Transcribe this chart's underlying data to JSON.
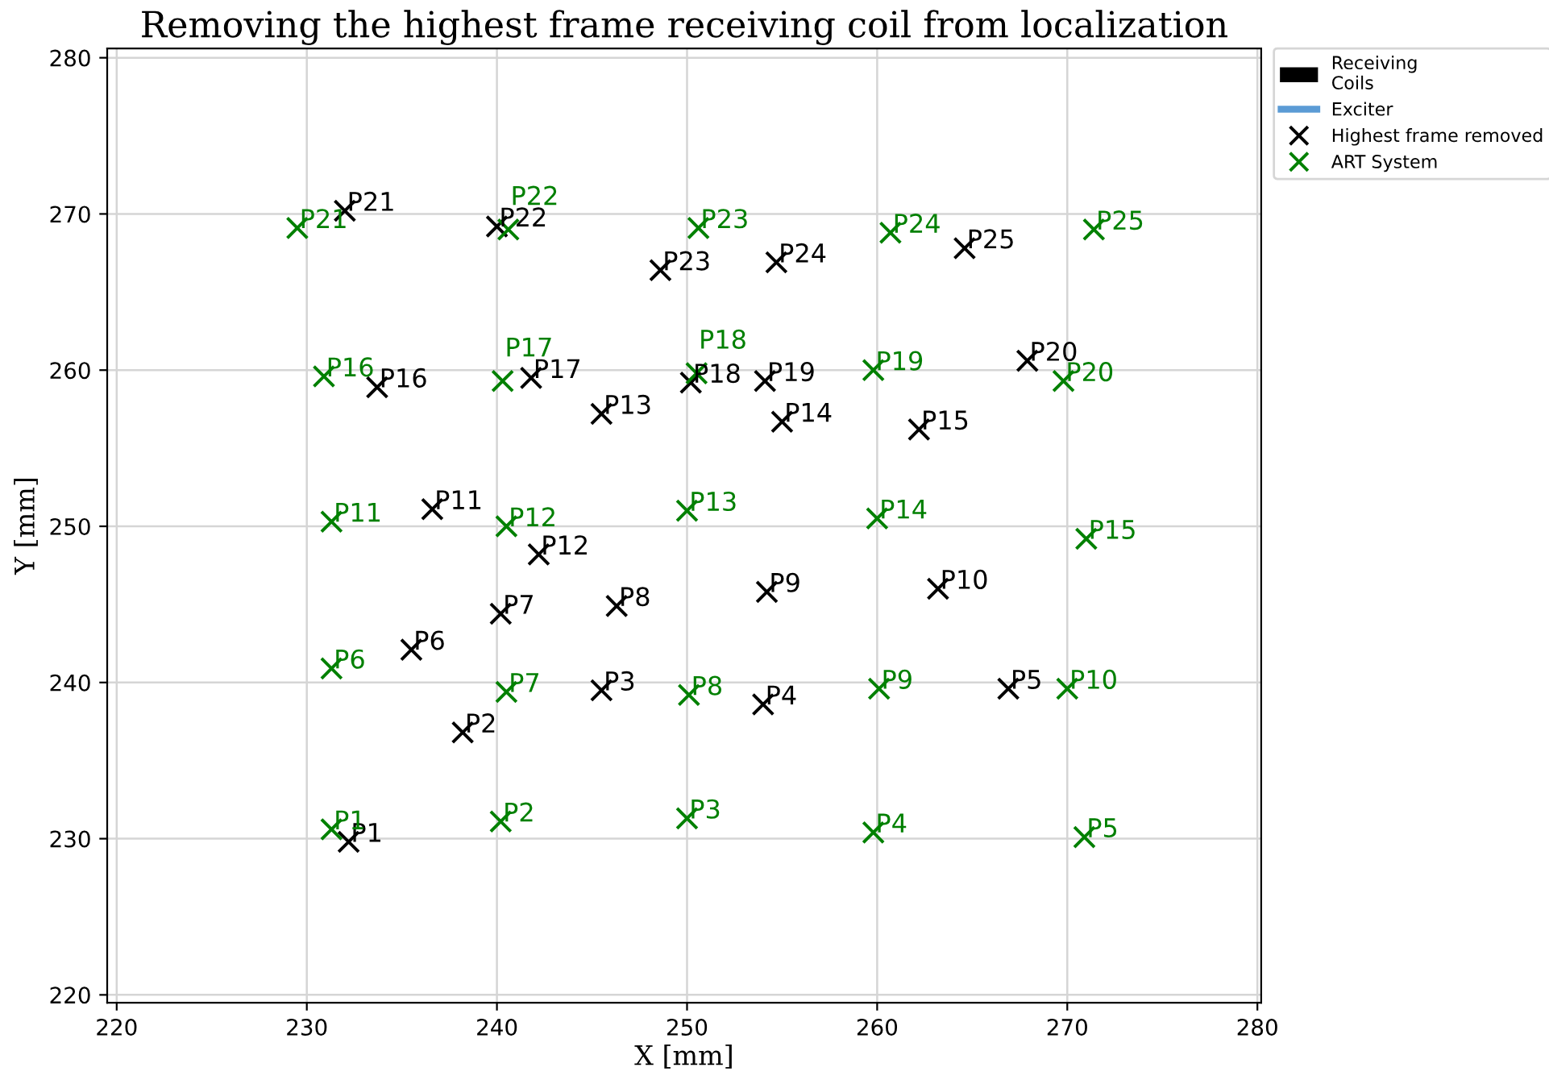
{
  "chart_data": {
    "type": "scatter",
    "title": "Removing the highest frame receiving coil from localization",
    "xlabel": "X [mm]",
    "ylabel": "Y [mm]",
    "xlim": [
      219.5,
      280.2
    ],
    "ylim": [
      219.5,
      280.6
    ],
    "xticks": [
      220,
      230,
      240,
      250,
      260,
      270,
      280
    ],
    "yticks": [
      220,
      230,
      240,
      250,
      260,
      270,
      280
    ],
    "grid": true,
    "legend": "top right",
    "marker": "cross",
    "series": [
      {
        "name": "Receiving\nCoils",
        "type": "bar",
        "color": "#000000"
      },
      {
        "name": "Exciter",
        "type": "line",
        "color": "#5b9bd5"
      },
      {
        "name": "Highest frame removed",
        "color": "#000000",
        "x": [
          232.2,
          238.2,
          245.5,
          254.0,
          266.9,
          235.5,
          240.2,
          246.3,
          254.2,
          263.2,
          236.6,
          242.2,
          245.5,
          255.0,
          262.2,
          233.7,
          241.8,
          250.2,
          254.1,
          267.9,
          232.0,
          240.0,
          248.6,
          254.7,
          264.6
        ],
        "values": [
          229.8,
          236.8,
          239.5,
          238.6,
          239.6,
          242.1,
          244.4,
          244.9,
          245.8,
          246.0,
          251.1,
          248.2,
          257.2,
          256.7,
          256.2,
          258.9,
          259.5,
          259.2,
          259.3,
          260.6,
          270.2,
          269.2,
          266.4,
          266.9,
          267.8
        ],
        "value_labels": [
          "P1",
          "P2",
          "P3",
          "P4",
          "P5",
          "P6",
          "P7",
          "P8",
          "P9",
          "P10",
          "P11",
          "P12",
          "P13",
          "P14",
          "P15",
          "P16",
          "P17",
          "P18",
          "P19",
          "P20",
          "P21",
          "P22",
          "P23",
          "P24",
          "P25"
        ]
      },
      {
        "name": "ART System",
        "color": "#008000",
        "x": [
          231.3,
          240.2,
          250.0,
          259.8,
          270.9,
          231.3,
          240.5,
          250.1,
          260.1,
          270.0,
          231.3,
          240.5,
          250.0,
          260.0,
          271.0,
          230.9,
          240.3,
          250.5,
          259.8,
          269.8,
          229.5,
          240.6,
          250.6,
          260.7,
          271.4
        ],
        "values": [
          230.6,
          231.1,
          231.3,
          230.4,
          230.1,
          240.9,
          239.4,
          239.2,
          239.6,
          239.6,
          250.3,
          250.0,
          251.0,
          250.5,
          249.2,
          259.6,
          259.3,
          259.8,
          260.0,
          259.3,
          269.1,
          269.0,
          269.1,
          268.8,
          269.0
        ],
        "value_labels": [
          "P1",
          "P2",
          "P3",
          "P4",
          "P5",
          "P6",
          "P7",
          "P8",
          "P9",
          "P10",
          "P11",
          "P12",
          "P13",
          "P14",
          "P15",
          "P16",
          "P17",
          "P18",
          "P19",
          "P20",
          "P21",
          "P22",
          "P23",
          "P24",
          "P25"
        ]
      }
    ]
  }
}
